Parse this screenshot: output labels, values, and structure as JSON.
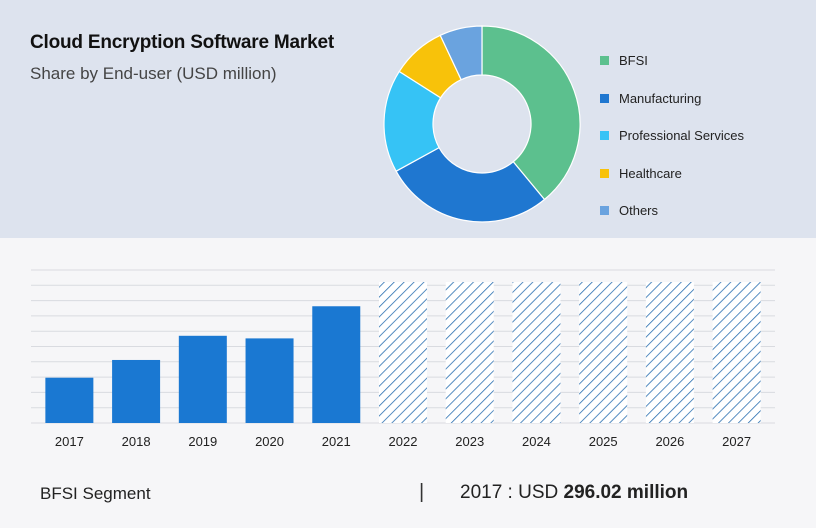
{
  "header": {
    "title": "Cloud Encryption Software Market",
    "subtitle": "Share by End-user (USD million)"
  },
  "chart_data": [
    {
      "type": "pie",
      "variant": "donut",
      "slices": [
        {
          "label": "BFSI",
          "value": 39,
          "color": "#5cc08e"
        },
        {
          "label": "Manufacturing",
          "value": 28,
          "color": "#1f77d0"
        },
        {
          "label": "Professional Services",
          "value": 17,
          "color": "#36c3f5"
        },
        {
          "label": "Healthcare",
          "value": 9,
          "color": "#f8c20a"
        },
        {
          "label": "Others",
          "value": 7,
          "color": "#6aa3df"
        }
      ],
      "legend_position": "right"
    },
    {
      "type": "bar",
      "categories": [
        "2017",
        "2018",
        "2019",
        "2020",
        "2021",
        "2022",
        "2023",
        "2024",
        "2025",
        "2026",
        "2027"
      ],
      "values": [
        296.02,
        412,
        570,
        553,
        763,
        null,
        null,
        null,
        null,
        null,
        null
      ],
      "forecast_categories": [
        "2022",
        "2023",
        "2024",
        "2025",
        "2026",
        "2027"
      ],
      "ylim": [
        0,
        1000
      ],
      "grid": true,
      "bar_color": "#1a78d2",
      "forecast_color": "#2a6fb0"
    }
  ],
  "footer": {
    "segment_label": "BFSI Segment",
    "separator": "|",
    "year_text": "2017 : USD ",
    "amount_text": "296.02 million"
  }
}
